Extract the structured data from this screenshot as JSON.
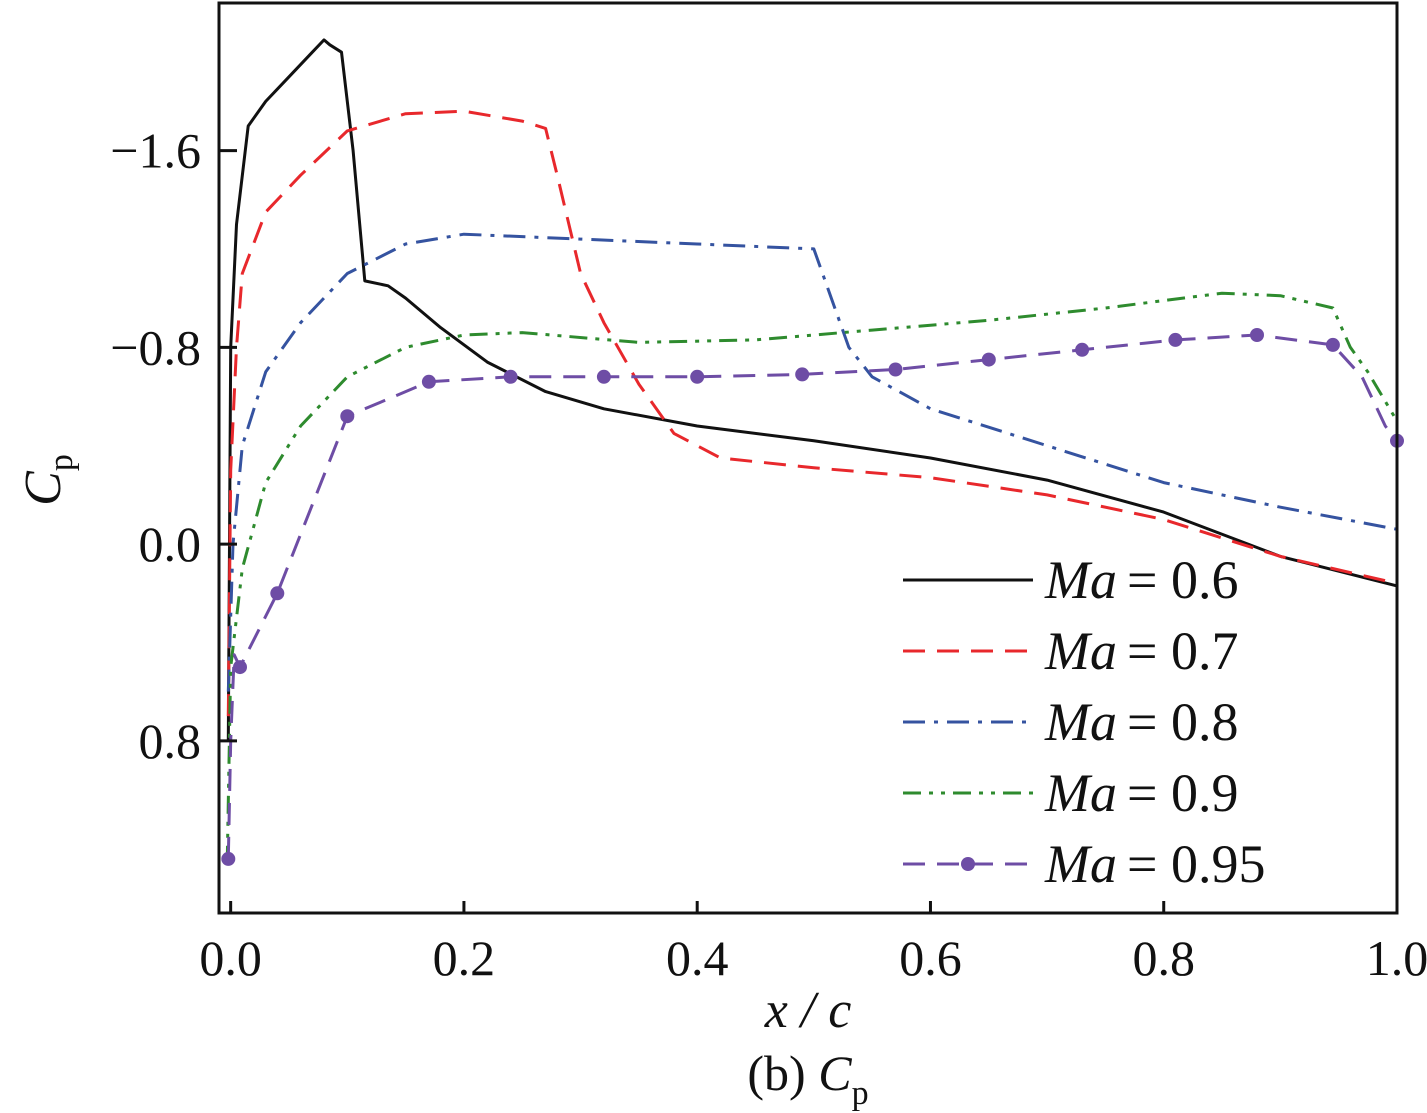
{
  "chart_data": {
    "type": "line",
    "xlabel": "x / c",
    "ylabel_main": "C",
    "ylabel_sub": "p",
    "caption_prefix": "(b) ",
    "caption_main": "C",
    "caption_sub": "p",
    "xlim": [
      -0.01,
      1.0
    ],
    "ylim": [
      1.5,
      -2.2
    ],
    "y_inverted": true,
    "xticks": [
      0.0,
      0.2,
      0.4,
      0.6,
      0.8,
      1.0
    ],
    "xtick_labels": [
      "0.0",
      "0.2",
      "0.4",
      "0.6",
      "0.8",
      "1.0"
    ],
    "yticks": [
      -1.6,
      -0.8,
      0.0,
      0.8
    ],
    "ytick_labels": [
      "−1.6",
      "−0.8",
      "0.0",
      "0.8"
    ],
    "grid": false,
    "legend_position": "bottom-right",
    "series": [
      {
        "name": "Ma = 0.6",
        "name_var": "Ma",
        "name_value": "= 0.6",
        "color": "#111111",
        "style": "solid",
        "points": [
          [
            -0.002,
            0.8
          ],
          [
            0.0,
            -0.8
          ],
          [
            0.005,
            -1.3
          ],
          [
            0.015,
            -1.7
          ],
          [
            0.03,
            -1.8
          ],
          [
            0.05,
            -1.9
          ],
          [
            0.07,
            -2.0
          ],
          [
            0.08,
            -2.05
          ],
          [
            0.085,
            -2.03
          ],
          [
            0.095,
            -2.0
          ],
          [
            0.1,
            -1.8
          ],
          [
            0.105,
            -1.6
          ],
          [
            0.115,
            -1.07
          ],
          [
            0.135,
            -1.05
          ],
          [
            0.15,
            -1.0
          ],
          [
            0.18,
            -0.88
          ],
          [
            0.22,
            -0.74
          ],
          [
            0.27,
            -0.62
          ],
          [
            0.32,
            -0.55
          ],
          [
            0.4,
            -0.48
          ],
          [
            0.5,
            -0.42
          ],
          [
            0.6,
            -0.35
          ],
          [
            0.7,
            -0.26
          ],
          [
            0.8,
            -0.13
          ],
          [
            0.9,
            0.05
          ],
          [
            1.0,
            0.17
          ]
        ]
      },
      {
        "name": "Ma = 0.7",
        "name_var": "Ma",
        "name_value": "= 0.7",
        "color": "#e8282c",
        "style": "dashed",
        "points": [
          [
            -0.002,
            0.7
          ],
          [
            0.0,
            -0.3
          ],
          [
            0.005,
            -0.8
          ],
          [
            0.01,
            -1.1
          ],
          [
            0.03,
            -1.35
          ],
          [
            0.06,
            -1.5
          ],
          [
            0.1,
            -1.68
          ],
          [
            0.15,
            -1.75
          ],
          [
            0.2,
            -1.76
          ],
          [
            0.25,
            -1.72
          ],
          [
            0.27,
            -1.69
          ],
          [
            0.28,
            -1.5
          ],
          [
            0.3,
            -1.1
          ],
          [
            0.32,
            -0.9
          ],
          [
            0.35,
            -0.65
          ],
          [
            0.38,
            -0.45
          ],
          [
            0.42,
            -0.35
          ],
          [
            0.5,
            -0.31
          ],
          [
            0.6,
            -0.27
          ],
          [
            0.7,
            -0.2
          ],
          [
            0.8,
            -0.1
          ],
          [
            0.9,
            0.05
          ],
          [
            1.0,
            0.16
          ]
        ]
      },
      {
        "name": "Ma = 0.8",
        "name_var": "Ma",
        "name_value": "= 0.8",
        "color": "#3553a0",
        "style": "dashdot",
        "points": [
          [
            -0.002,
            0.6
          ],
          [
            0.002,
            0.0
          ],
          [
            0.01,
            -0.4
          ],
          [
            0.03,
            -0.7
          ],
          [
            0.06,
            -0.9
          ],
          [
            0.1,
            -1.1
          ],
          [
            0.15,
            -1.22
          ],
          [
            0.2,
            -1.26
          ],
          [
            0.3,
            -1.24
          ],
          [
            0.4,
            -1.22
          ],
          [
            0.5,
            -1.2
          ],
          [
            0.53,
            -0.8
          ],
          [
            0.55,
            -0.68
          ],
          [
            0.6,
            -0.55
          ],
          [
            0.7,
            -0.4
          ],
          [
            0.8,
            -0.25
          ],
          [
            0.9,
            -0.15
          ],
          [
            1.0,
            -0.06
          ]
        ]
      },
      {
        "name": "Ma = 0.9",
        "name_var": "Ma",
        "name_value": "= 0.9",
        "color": "#2e8b2e",
        "style": "dashdotdot",
        "points": [
          [
            -0.003,
            1.3
          ],
          [
            0.0,
            0.5
          ],
          [
            0.01,
            0.1
          ],
          [
            0.03,
            -0.25
          ],
          [
            0.06,
            -0.48
          ],
          [
            0.1,
            -0.68
          ],
          [
            0.15,
            -0.8
          ],
          [
            0.2,
            -0.85
          ],
          [
            0.25,
            -0.86
          ],
          [
            0.35,
            -0.82
          ],
          [
            0.45,
            -0.83
          ],
          [
            0.55,
            -0.87
          ],
          [
            0.65,
            -0.91
          ],
          [
            0.75,
            -0.96
          ],
          [
            0.85,
            -1.02
          ],
          [
            0.9,
            -1.01
          ],
          [
            0.945,
            -0.96
          ],
          [
            0.96,
            -0.8
          ],
          [
            0.975,
            -0.7
          ],
          [
            1.0,
            -0.5
          ]
        ]
      },
      {
        "name": "Ma = 0.95",
        "name_var": "Ma",
        "name_value": "= 0.95",
        "color": "#6e4da5",
        "style": "dashed-markers",
        "points": [
          [
            -0.002,
            1.28
          ],
          [
            0.0,
            0.8
          ],
          [
            0.003,
            0.45
          ],
          [
            0.008,
            0.5
          ],
          [
            0.04,
            0.2
          ],
          [
            0.1,
            -0.52
          ],
          [
            0.17,
            -0.66
          ],
          [
            0.24,
            -0.68
          ],
          [
            0.32,
            -0.68
          ],
          [
            0.4,
            -0.68
          ],
          [
            0.49,
            -0.69
          ],
          [
            0.57,
            -0.71
          ],
          [
            0.65,
            -0.75
          ],
          [
            0.73,
            -0.79
          ],
          [
            0.81,
            -0.83
          ],
          [
            0.88,
            -0.85
          ],
          [
            0.945,
            -0.81
          ],
          [
            0.97,
            -0.68
          ],
          [
            0.99,
            -0.48
          ],
          [
            1.0,
            -0.42
          ]
        ],
        "marker_points": [
          [
            -0.002,
            1.28
          ],
          [
            0.008,
            0.5
          ],
          [
            0.04,
            0.2
          ],
          [
            0.1,
            -0.52
          ],
          [
            0.17,
            -0.66
          ],
          [
            0.24,
            -0.68
          ],
          [
            0.32,
            -0.68
          ],
          [
            0.4,
            -0.68
          ],
          [
            0.49,
            -0.69
          ],
          [
            0.57,
            -0.71
          ],
          [
            0.65,
            -0.75
          ],
          [
            0.73,
            -0.79
          ],
          [
            0.81,
            -0.83
          ],
          [
            0.88,
            -0.85
          ],
          [
            0.945,
            -0.81
          ],
          [
            1.0,
            -0.42
          ]
        ]
      }
    ]
  }
}
